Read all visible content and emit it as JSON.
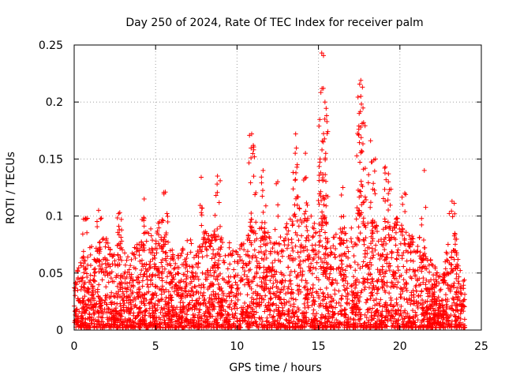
{
  "chart_data": {
    "type": "scatter",
    "title": "Day 250 of 2024, Rate Of TEC Index for receiver palm",
    "xlabel": "GPS time / hours",
    "ylabel": "ROTI / TECUs",
    "xlim": [
      0,
      25
    ],
    "ylim": [
      0,
      0.25
    ],
    "x_ticks": [
      0,
      5,
      10,
      15,
      20,
      25
    ],
    "x_tick_labels": [
      "0",
      "5",
      "10",
      "15",
      "20",
      "25"
    ],
    "y_ticks": [
      0,
      0.05,
      0.1,
      0.15,
      0.2,
      0.25
    ],
    "y_tick_labels": [
      "0",
      "0.05",
      "0.1",
      "0.15",
      "0.2",
      "0.25"
    ],
    "grid": true,
    "marker": "+",
    "marker_color": "#ff0000",
    "envelope": {
      "x": [
        0.0,
        0.3,
        0.5,
        0.8,
        1.0,
        1.3,
        1.6,
        2.0,
        2.4,
        2.8,
        3.0,
        3.4,
        3.8,
        4.2,
        4.5,
        5.0,
        5.5,
        5.8,
        6.2,
        6.6,
        7.0,
        7.5,
        7.9,
        8.3,
        8.7,
        9.0,
        9.5,
        10.0,
        10.5,
        10.9,
        11.3,
        11.7,
        12.0,
        12.5,
        13.0,
        13.4,
        13.7,
        14.0,
        14.4,
        14.8,
        15.2,
        15.5,
        15.8,
        16.2,
        16.6,
        17.0,
        17.5,
        17.9,
        18.3,
        18.7,
        19.1,
        19.5,
        19.9,
        20.3,
        20.7,
        21.1,
        21.5,
        21.9,
        22.3,
        22.7,
        23.0,
        23.3,
        23.6,
        24.0
      ],
      "y": [
        0.045,
        0.06,
        0.065,
        0.06,
        0.075,
        0.06,
        0.08,
        0.085,
        0.07,
        0.09,
        0.07,
        0.06,
        0.075,
        0.08,
        0.09,
        0.09,
        0.1,
        0.08,
        0.06,
        0.07,
        0.08,
        0.07,
        0.09,
        0.08,
        0.09,
        0.08,
        0.075,
        0.07,
        0.08,
        0.1,
        0.085,
        0.1,
        0.08,
        0.075,
        0.09,
        0.1,
        0.12,
        0.1,
        0.11,
        0.09,
        0.12,
        0.1,
        0.08,
        0.085,
        0.09,
        0.095,
        0.11,
        0.12,
        0.1,
        0.09,
        0.1,
        0.09,
        0.1,
        0.085,
        0.08,
        0.09,
        0.07,
        0.06,
        0.05,
        0.06,
        0.08,
        0.09,
        0.07,
        0.04
      ]
    },
    "spikes": [
      {
        "x": 0.7,
        "y": 0.098
      },
      {
        "x": 1.5,
        "y": 0.105
      },
      {
        "x": 2.8,
        "y": 0.103
      },
      {
        "x": 4.3,
        "y": 0.115
      },
      {
        "x": 5.6,
        "y": 0.121
      },
      {
        "x": 7.8,
        "y": 0.134
      },
      {
        "x": 8.8,
        "y": 0.135
      },
      {
        "x": 10.9,
        "y": 0.172
      },
      {
        "x": 11.0,
        "y": 0.162
      },
      {
        "x": 11.6,
        "y": 0.14
      },
      {
        "x": 13.6,
        "y": 0.172
      },
      {
        "x": 13.7,
        "y": 0.145
      },
      {
        "x": 14.2,
        "y": 0.155
      },
      {
        "x": 15.2,
        "y": 0.243
      },
      {
        "x": 15.3,
        "y": 0.212
      },
      {
        "x": 15.4,
        "y": 0.2
      },
      {
        "x": 15.5,
        "y": 0.188
      },
      {
        "x": 15.3,
        "y": 0.165
      },
      {
        "x": 15.1,
        "y": 0.15
      },
      {
        "x": 17.6,
        "y": 0.219
      },
      {
        "x": 17.7,
        "y": 0.213
      },
      {
        "x": 17.6,
        "y": 0.205
      },
      {
        "x": 17.5,
        "y": 0.19
      },
      {
        "x": 17.6,
        "y": 0.178
      },
      {
        "x": 18.2,
        "y": 0.166
      },
      {
        "x": 18.5,
        "y": 0.15
      },
      {
        "x": 19.1,
        "y": 0.143
      },
      {
        "x": 19.3,
        "y": 0.137
      },
      {
        "x": 21.5,
        "y": 0.14
      },
      {
        "x": 20.3,
        "y": 0.12
      },
      {
        "x": 23.2,
        "y": 0.113
      },
      {
        "x": 16.5,
        "y": 0.125
      },
      {
        "x": 12.5,
        "y": 0.13
      }
    ]
  }
}
